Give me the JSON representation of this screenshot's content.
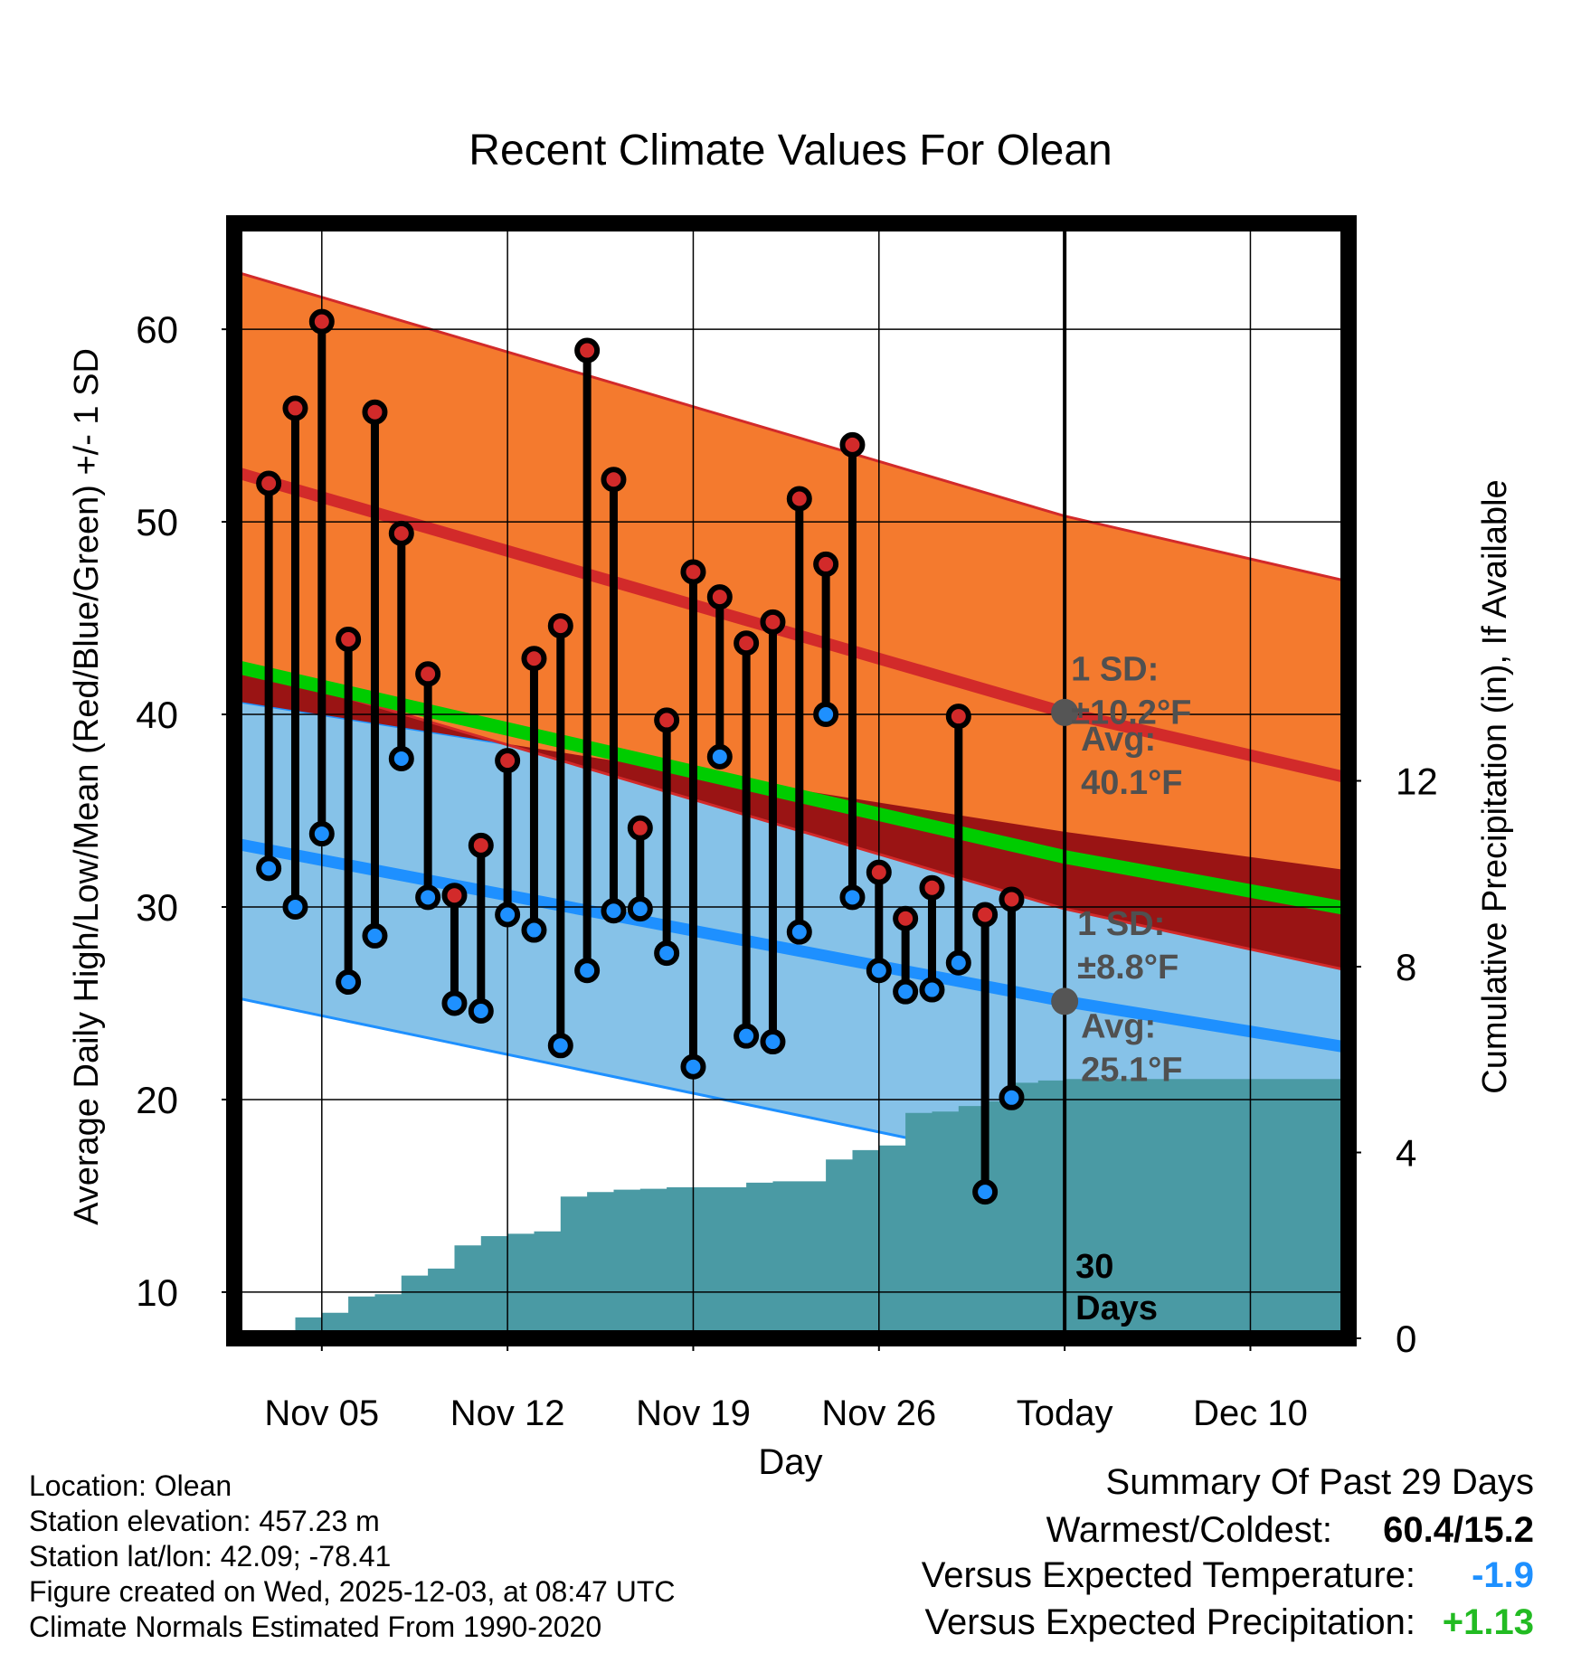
{
  "chart_data": {
    "type": "line",
    "title": "Recent Climate Values For Olean",
    "xlabel": "Day",
    "ylabel_left": "Average Daily High/Low/Mean (Red/Blue/Green) +/- 1 SD",
    "ylabel_right": "Cumulative Precipitation (in), If Available",
    "y_ticks": [
      10,
      20,
      30,
      40,
      50,
      60
    ],
    "y2_ticks": [
      0,
      4,
      8,
      12
    ],
    "ylim": [
      7.6,
      65.5
    ],
    "y2lim": [
      0,
      24
    ],
    "x_ticks": [
      {
        "day": 3,
        "label": "Nov 05"
      },
      {
        "day": 10,
        "label": "Nov 12"
      },
      {
        "day": 17,
        "label": "Nov 19"
      },
      {
        "day": 24,
        "label": "Nov 26"
      },
      {
        "day": 31,
        "label": "Today"
      },
      {
        "day": 38,
        "label": "Dec 10"
      }
    ],
    "xlim": [
      -0.3,
      41.7
    ],
    "today_day": 31,
    "today_label": "30 Days",
    "normals": {
      "days": [
        -0.3,
        31,
        41.7
      ],
      "high_avg": [
        52.6,
        40.1,
        36.7
      ],
      "high_upper": [
        63.0,
        50.3,
        46.9
      ],
      "high_lower": [
        42.6,
        29.9,
        26.7
      ],
      "low_avg": [
        33.3,
        25.1,
        22.7
      ],
      "low_upper": [
        40.7,
        33.9,
        31.9
      ],
      "low_lower": [
        25.3,
        16.3,
        13.6
      ],
      "mean_avg": [
        42.5,
        32.6,
        29.9
      ]
    },
    "series": [
      {
        "name": "Daily High",
        "values": [
          52.0,
          55.9,
          60.4,
          43.9,
          55.7,
          49.4,
          42.1,
          30.6,
          33.2,
          37.6,
          42.9,
          44.6,
          58.9,
          52.2,
          34.1,
          39.7,
          47.4,
          46.1,
          43.7,
          44.8,
          51.2,
          47.8,
          54.0,
          31.8,
          29.4,
          31.0,
          39.9,
          29.6,
          30.4
        ]
      },
      {
        "name": "Daily Low",
        "values": [
          32.0,
          30.0,
          33.8,
          26.1,
          28.5,
          37.7,
          30.5,
          25.0,
          24.6,
          29.6,
          28.8,
          22.8,
          26.7,
          29.8,
          29.9,
          27.6,
          21.7,
          37.8,
          23.3,
          23.0,
          28.7,
          40.0,
          30.5,
          26.7,
          25.6,
          25.7,
          27.1,
          15.2,
          20.1
        ]
      }
    ],
    "day_start": 1,
    "precip": {
      "days": [
        1,
        2,
        3,
        4,
        5,
        6,
        7,
        8,
        9,
        10,
        11,
        12,
        13,
        14,
        15,
        16,
        17,
        18,
        19,
        20,
        21,
        22,
        23,
        24,
        25,
        26,
        27,
        28,
        29,
        30,
        31,
        41.7
      ],
      "cum": [
        0,
        0.45,
        0.55,
        0.9,
        0.95,
        1.35,
        1.5,
        2.0,
        2.2,
        2.25,
        2.3,
        3.05,
        3.15,
        3.2,
        3.22,
        3.25,
        3.25,
        3.25,
        3.35,
        3.38,
        3.38,
        3.85,
        4.05,
        4.15,
        4.85,
        4.88,
        5.0,
        5.1,
        5.5,
        5.55,
        5.58,
        5.58
      ]
    },
    "annotations": [
      {
        "text_lines": [
          "1 SD:",
          "±10.2°F"
        ],
        "series": "high"
      },
      {
        "text_lines": [
          "Avg:",
          "40.1°F"
        ],
        "series": "high"
      },
      {
        "text_lines": [
          "1 SD:",
          "±8.8°F"
        ],
        "series": "low"
      },
      {
        "text_lines": [
          "Avg:",
          "25.1°F"
        ],
        "series": "low"
      }
    ],
    "colors": {
      "high_band": "#f47a2e",
      "high_line": "#d22a2a",
      "low_band": "#86c2e8",
      "low_line": "#1e90ff",
      "mean_line": "#00cc00",
      "overlap": "#9a1414",
      "precip": "#4a9aa4",
      "high_marker": "#d22a2a",
      "low_marker": "#1e90ff",
      "annotation": "#505050"
    }
  },
  "info": {
    "location": "Location: Olean",
    "elevation": "Station elevation: 457.23 m",
    "latlon": "Station lat/lon: 42.09; -78.41",
    "created": "Figure created on Wed, 2025-12-03, at 08:47 UTC",
    "normals": "Climate Normals Estimated From 1990-2020"
  },
  "summary": {
    "title": "Summary Of Past 29 Days",
    "warm_cold_label": "Warmest/Coldest:",
    "warm_cold_value": "60.4/15.2",
    "temp_label": "Versus Expected Temperature:",
    "temp_value": "-1.9",
    "temp_color": "#1e90ff",
    "precip_label": "Versus Expected Precipitation:",
    "precip_value": "+1.13",
    "precip_color": "#22bb22"
  }
}
